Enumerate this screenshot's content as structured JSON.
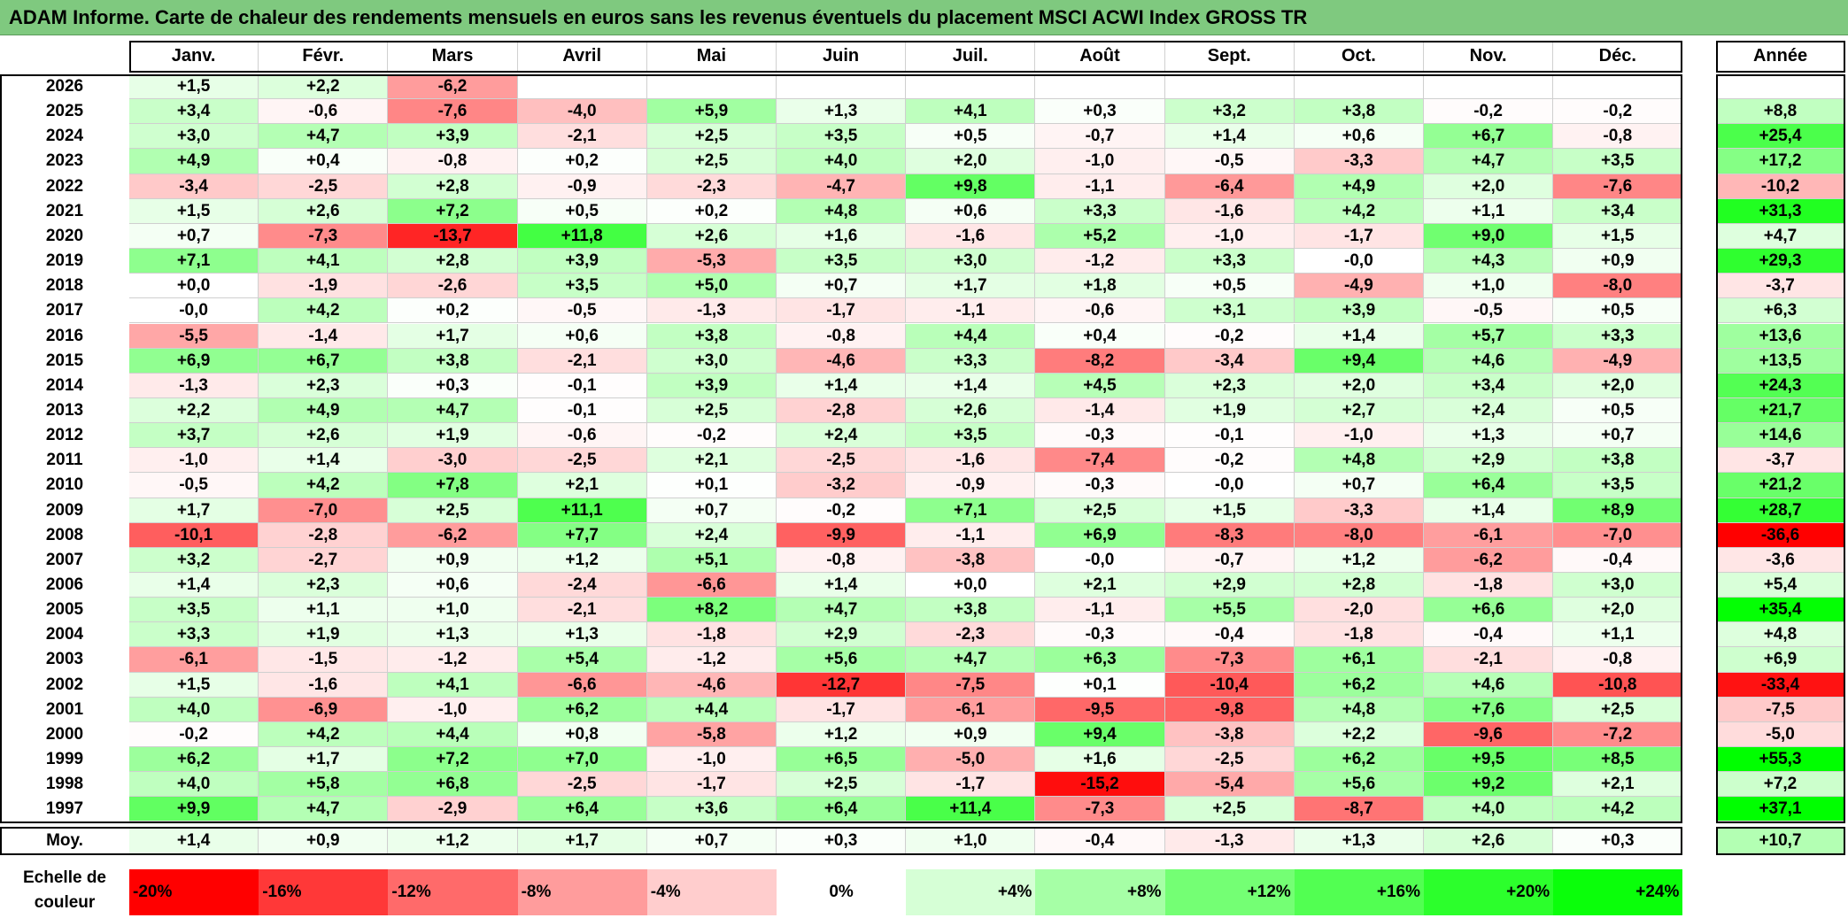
{
  "title": "ADAM Informe. Carte de chaleur des rendements mensuels en euros sans les revenus éventuels du placement MSCI ACWI Index GROSS TR",
  "chart_data": {
    "type": "heatmap",
    "columns": [
      "Janv.",
      "Févr.",
      "Mars",
      "Avril",
      "Mai",
      "Juin",
      "Juil.",
      "Août",
      "Sept.",
      "Oct.",
      "Nov.",
      "Déc."
    ],
    "year_column": "Année",
    "rows": [
      {
        "year": "2026",
        "months": [
          "+1,5",
          "+2,2",
          "-6,2",
          "",
          "",
          "",
          "",
          "",
          "",
          "",
          "",
          ""
        ],
        "annual": ""
      },
      {
        "year": "2025",
        "months": [
          "+3,4",
          "-0,6",
          "-7,6",
          "-4,0",
          "+5,9",
          "+1,3",
          "+4,1",
          "+0,3",
          "+3,2",
          "+3,8",
          "-0,2",
          "-0,2"
        ],
        "annual": "+8,8"
      },
      {
        "year": "2024",
        "months": [
          "+3,0",
          "+4,7",
          "+3,9",
          "-2,1",
          "+2,5",
          "+3,5",
          "+0,5",
          "-0,7",
          "+1,4",
          "+0,6",
          "+6,7",
          "-0,8"
        ],
        "annual": "+25,4"
      },
      {
        "year": "2023",
        "months": [
          "+4,9",
          "+0,4",
          "-0,8",
          "+0,2",
          "+2,5",
          "+4,0",
          "+2,0",
          "-1,0",
          "-0,5",
          "-3,3",
          "+4,7",
          "+3,5"
        ],
        "annual": "+17,2"
      },
      {
        "year": "2022",
        "months": [
          "-3,4",
          "-2,5",
          "+2,8",
          "-0,9",
          "-2,3",
          "-4,7",
          "+9,8",
          "-1,1",
          "-6,4",
          "+4,9",
          "+2,0",
          "-7,6"
        ],
        "annual": "-10,2"
      },
      {
        "year": "2021",
        "months": [
          "+1,5",
          "+2,6",
          "+7,2",
          "+0,5",
          "+0,2",
          "+4,8",
          "+0,6",
          "+3,3",
          "-1,6",
          "+4,2",
          "+1,1",
          "+3,4"
        ],
        "annual": "+31,3"
      },
      {
        "year": "2020",
        "months": [
          "+0,7",
          "-7,3",
          "-13,7",
          "+11,8",
          "+2,6",
          "+1,6",
          "-1,6",
          "+5,2",
          "-1,0",
          "-1,7",
          "+9,0",
          "+1,5"
        ],
        "annual": "+4,7"
      },
      {
        "year": "2019",
        "months": [
          "+7,1",
          "+4,1",
          "+2,8",
          "+3,9",
          "-5,3",
          "+3,5",
          "+3,0",
          "-1,2",
          "+3,3",
          "-0,0",
          "+4,3",
          "+0,9"
        ],
        "annual": "+29,3"
      },
      {
        "year": "2018",
        "months": [
          "+0,0",
          "-1,9",
          "-2,6",
          "+3,5",
          "+5,0",
          "+0,7",
          "+1,7",
          "+1,8",
          "+0,5",
          "-4,9",
          "+1,0",
          "-8,0"
        ],
        "annual": "-3,7"
      },
      {
        "year": "2017",
        "months": [
          "-0,0",
          "+4,2",
          "+0,2",
          "-0,5",
          "-1,3",
          "-1,7",
          "-1,1",
          "-0,6",
          "+3,1",
          "+3,9",
          "-0,5",
          "+0,5"
        ],
        "annual": "+6,3"
      },
      {
        "year": "2016",
        "months": [
          "-5,5",
          "-1,4",
          "+1,7",
          "+0,6",
          "+3,8",
          "-0,8",
          "+4,4",
          "+0,4",
          "-0,2",
          "+1,4",
          "+5,7",
          "+3,3"
        ],
        "annual": "+13,6"
      },
      {
        "year": "2015",
        "months": [
          "+6,9",
          "+6,7",
          "+3,8",
          "-2,1",
          "+3,0",
          "-4,6",
          "+3,3",
          "-8,2",
          "-3,4",
          "+9,4",
          "+4,6",
          "-4,9"
        ],
        "annual": "+13,5"
      },
      {
        "year": "2014",
        "months": [
          "-1,3",
          "+2,3",
          "+0,3",
          "-0,1",
          "+3,9",
          "+1,4",
          "+1,4",
          "+4,5",
          "+2,3",
          "+2,0",
          "+3,4",
          "+2,0"
        ],
        "annual": "+24,3"
      },
      {
        "year": "2013",
        "months": [
          "+2,2",
          "+4,9",
          "+4,7",
          "-0,1",
          "+2,5",
          "-2,8",
          "+2,6",
          "-1,4",
          "+1,9",
          "+2,7",
          "+2,4",
          "+0,5"
        ],
        "annual": "+21,7"
      },
      {
        "year": "2012",
        "months": [
          "+3,7",
          "+2,6",
          "+1,9",
          "-0,6",
          "-0,2",
          "+2,4",
          "+3,5",
          "-0,3",
          "-0,1",
          "-1,0",
          "+1,3",
          "+0,7"
        ],
        "annual": "+14,6"
      },
      {
        "year": "2011",
        "months": [
          "-1,0",
          "+1,4",
          "-3,0",
          "-2,5",
          "+2,1",
          "-2,5",
          "-1,6",
          "-7,4",
          "-0,2",
          "+4,8",
          "+2,9",
          "+3,8"
        ],
        "annual": "-3,7"
      },
      {
        "year": "2010",
        "months": [
          "-0,5",
          "+4,2",
          "+7,8",
          "+2,1",
          "+0,1",
          "-3,2",
          "-0,9",
          "-0,3",
          "-0,0",
          "+0,7",
          "+6,4",
          "+3,5"
        ],
        "annual": "+21,2"
      },
      {
        "year": "2009",
        "months": [
          "+1,7",
          "-7,0",
          "+2,5",
          "+11,1",
          "+0,7",
          "-0,2",
          "+7,1",
          "+2,5",
          "+1,5",
          "-3,3",
          "+1,4",
          "+8,9"
        ],
        "annual": "+28,7"
      },
      {
        "year": "2008",
        "months": [
          "-10,1",
          "-2,8",
          "-6,2",
          "+7,7",
          "+2,4",
          "-9,9",
          "-1,1",
          "+6,9",
          "-8,3",
          "-8,0",
          "-6,1",
          "-7,0"
        ],
        "annual": "-36,6"
      },
      {
        "year": "2007",
        "months": [
          "+3,2",
          "-2,7",
          "+0,9",
          "+1,2",
          "+5,1",
          "-0,8",
          "-3,8",
          "-0,0",
          "-0,7",
          "+1,2",
          "-6,2",
          "-0,4"
        ],
        "annual": "-3,6"
      },
      {
        "year": "2006",
        "months": [
          "+1,4",
          "+2,3",
          "+0,6",
          "-2,4",
          "-6,6",
          "+1,4",
          "+0,0",
          "+2,1",
          "+2,9",
          "+2,8",
          "-1,8",
          "+3,0"
        ],
        "annual": "+5,4"
      },
      {
        "year": "2005",
        "months": [
          "+3,5",
          "+1,1",
          "+1,0",
          "-2,1",
          "+8,2",
          "+4,7",
          "+3,8",
          "-1,1",
          "+5,5",
          "-2,0",
          "+6,6",
          "+2,0"
        ],
        "annual": "+35,4"
      },
      {
        "year": "2004",
        "months": [
          "+3,3",
          "+1,9",
          "+1,3",
          "+1,3",
          "-1,8",
          "+2,9",
          "-2,3",
          "-0,3",
          "-0,4",
          "-1,8",
          "-0,4",
          "+1,1"
        ],
        "annual": "+4,8"
      },
      {
        "year": "2003",
        "months": [
          "-6,1",
          "-1,5",
          "-1,2",
          "+5,4",
          "-1,2",
          "+5,6",
          "+4,7",
          "+6,3",
          "-7,3",
          "+6,1",
          "-2,1",
          "-0,8"
        ],
        "annual": "+6,9"
      },
      {
        "year": "2002",
        "months": [
          "+1,5",
          "-1,6",
          "+4,1",
          "-6,6",
          "-4,6",
          "-12,7",
          "-7,5",
          "+0,1",
          "-10,4",
          "+6,2",
          "+4,6",
          "-10,8"
        ],
        "annual": "-33,4"
      },
      {
        "year": "2001",
        "months": [
          "+4,0",
          "-6,9",
          "-1,0",
          "+6,2",
          "+4,4",
          "-1,7",
          "-6,1",
          "-9,5",
          "-9,8",
          "+4,8",
          "+7,6",
          "+2,5"
        ],
        "annual": "-7,5"
      },
      {
        "year": "2000",
        "months": [
          "-0,2",
          "+4,2",
          "+4,4",
          "+0,8",
          "-5,8",
          "+1,2",
          "+0,9",
          "+9,4",
          "-3,8",
          "+2,2",
          "-9,6",
          "-7,2"
        ],
        "annual": "-5,0"
      },
      {
        "year": "1999",
        "months": [
          "+6,2",
          "+1,7",
          "+7,2",
          "+7,0",
          "-1,0",
          "+6,5",
          "-5,0",
          "+1,6",
          "-2,5",
          "+6,2",
          "+9,5",
          "+8,5"
        ],
        "annual": "+55,3"
      },
      {
        "year": "1998",
        "months": [
          "+4,0",
          "+5,8",
          "+6,8",
          "-2,5",
          "-1,7",
          "+2,5",
          "-1,7",
          "-15,2",
          "-5,4",
          "+5,6",
          "+9,2",
          "+2,1"
        ],
        "annual": "+7,2"
      },
      {
        "year": "1997",
        "months": [
          "+9,9",
          "+4,7",
          "-2,9",
          "+6,4",
          "+3,6",
          "+6,4",
          "+11,4",
          "-7,3",
          "+2,5",
          "-8,7",
          "+4,0",
          "+4,2"
        ],
        "annual": "+37,1"
      }
    ],
    "average": {
      "label": "Moy.",
      "months": [
        "+1,4",
        "+0,9",
        "+1,2",
        "+1,7",
        "+0,7",
        "+0,3",
        "+1,0",
        "-0,4",
        "-1,3",
        "+1,3",
        "+2,6",
        "+0,3"
      ],
      "annual": "+10,7"
    },
    "legend": {
      "label": "Echelle de couleur",
      "steps": [
        {
          "text": "-20%",
          "value": -20,
          "color": "#ff0000"
        },
        {
          "text": "-16%",
          "value": -16,
          "color": "#ff3838"
        },
        {
          "text": "-12%",
          "value": -12,
          "color": "#ff6a6a"
        },
        {
          "text": "-8%",
          "value": -8,
          "color": "#ff9c9c"
        },
        {
          "text": "-4%",
          "value": -4,
          "color": "#ffcdcd"
        },
        {
          "text": "0%",
          "value": 0,
          "color": "#ffffff"
        },
        {
          "text": "+4%",
          "value": 4,
          "color": "#d6ffd6"
        },
        {
          "text": "+8%",
          "value": 8,
          "color": "#a6ffa6"
        },
        {
          "text": "+12%",
          "value": 12,
          "color": "#74ff74"
        },
        {
          "text": "+16%",
          "value": 16,
          "color": "#52ff52"
        },
        {
          "text": "+20%",
          "value": 20,
          "color": "#2cff2c"
        },
        {
          "text": "+24%",
          "value": 24,
          "color": "#0aff0a"
        }
      ]
    },
    "colors": {
      "title_bar": "#7fc97f",
      "negative_max": "#ff0000",
      "positive_max": "#00ff00",
      "neutral": "#ffffff"
    }
  }
}
